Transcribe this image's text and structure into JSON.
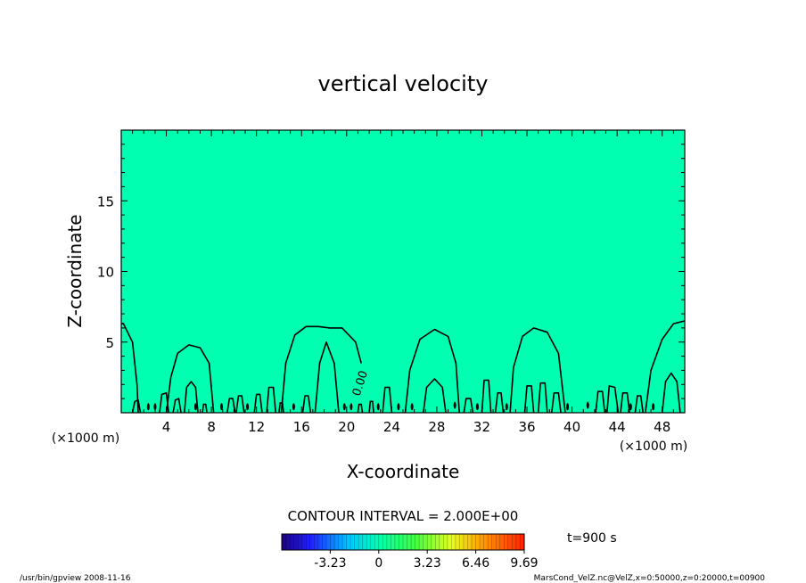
{
  "chart_data": {
    "type": "heatmap",
    "title": "vertical velocity",
    "xlabel": "X-coordinate",
    "ylabel": "Z-coordinate",
    "xunit_left": "(×1000 m)",
    "xunit_right": "(×1000 m)",
    "xlim": [
      0,
      50
    ],
    "ylim": [
      0,
      20
    ],
    "x_ticks": [
      4,
      8,
      12,
      16,
      20,
      24,
      28,
      32,
      36,
      40,
      44,
      48
    ],
    "y_ticks": [
      5,
      10,
      15
    ],
    "fill_color": "#00ffb0",
    "contour_interval_label": "CONTOUR INTERVAL = 2.000E+00",
    "contour_label": "0.00",
    "contour_label_x": 21.5,
    "contour_label_y": 2.0,
    "colorbar_ticks": [
      "-3.23",
      "0",
      "3.23",
      "6.46",
      "9.69"
    ],
    "colorbar_tick_values": [
      -3.23,
      0,
      3.23,
      6.46,
      9.69
    ],
    "colorbar_range": [
      -6.46,
      9.69
    ],
    "time_label": "t=900 s",
    "footer_left": "/usr/bin/gpview   2008-11-16",
    "footer_right": "MarsCond_VelZ.nc@VelZ,x=0:50000,z=0:20000,t=00900",
    "contours_outer": [
      {
        "x": [
          0.0,
          0.2,
          1.0,
          1.4,
          1.5
        ],
        "y": [
          6.3,
          6.3,
          5.0,
          2.0,
          0.0
        ]
      },
      {
        "x": [
          4.0,
          4.4,
          5.0,
          6.0,
          7.0,
          7.8,
          8.2
        ],
        "y": [
          0.0,
          2.5,
          4.2,
          4.8,
          4.6,
          3.5,
          0.0
        ]
      },
      {
        "x": [
          14.2,
          14.6,
          15.4,
          16.4,
          17.5,
          18.5,
          19.6,
          20.8,
          21.3
        ],
        "y": [
          0.0,
          3.5,
          5.5,
          6.1,
          6.1,
          6.0,
          6.0,
          5.0,
          3.5
        ]
      },
      {
        "x": [
          25.2,
          25.6,
          26.5,
          27.8,
          29.0,
          29.7,
          30.0
        ],
        "y": [
          0.0,
          3.0,
          5.2,
          5.9,
          5.4,
          3.5,
          0.0
        ]
      },
      {
        "x": [
          34.5,
          34.8,
          35.6,
          36.6,
          37.8,
          38.8,
          39.4
        ],
        "y": [
          0.0,
          3.2,
          5.4,
          6.0,
          5.7,
          4.2,
          0.0
        ]
      },
      {
        "x": [
          46.5,
          47.0,
          48.0,
          49.0,
          50.0
        ],
        "y": [
          0.0,
          3.0,
          5.2,
          6.3,
          6.5
        ]
      }
    ],
    "contours_inner": [
      {
        "x": [
          1.0,
          1.2,
          1.5,
          1.7
        ],
        "y": [
          0.0,
          0.8,
          0.9,
          0.0
        ]
      },
      {
        "x": [
          3.4,
          3.6,
          4.0,
          4.2
        ],
        "y": [
          0.0,
          1.3,
          1.4,
          0.0
        ]
      },
      {
        "x": [
          4.6,
          4.8,
          5.1,
          5.3
        ],
        "y": [
          0.0,
          0.9,
          1.0,
          0.0
        ]
      },
      {
        "x": [
          5.6,
          5.8,
          6.2,
          6.6,
          6.8
        ],
        "y": [
          0.0,
          1.8,
          2.2,
          1.8,
          0.0
        ]
      },
      {
        "x": [
          7.2,
          7.3,
          7.5,
          7.6
        ],
        "y": [
          0.0,
          0.6,
          0.6,
          0.0
        ]
      },
      {
        "x": [
          9.4,
          9.6,
          9.9,
          10.1
        ],
        "y": [
          0.0,
          1.0,
          1.0,
          0.0
        ]
      },
      {
        "x": [
          10.2,
          10.4,
          10.7,
          10.9
        ],
        "y": [
          0.0,
          1.2,
          1.2,
          0.0
        ]
      },
      {
        "x": [
          11.8,
          12.0,
          12.3,
          12.5
        ],
        "y": [
          0.0,
          1.3,
          1.3,
          0.0
        ]
      },
      {
        "x": [
          12.9,
          13.1,
          13.5,
          13.7
        ],
        "y": [
          0.0,
          1.8,
          1.8,
          0.0
        ]
      },
      {
        "x": [
          14.0,
          14.1,
          14.3,
          14.4
        ],
        "y": [
          0.0,
          0.7,
          0.7,
          0.0
        ]
      },
      {
        "x": [
          16.1,
          16.3,
          16.6,
          16.8
        ],
        "y": [
          0.0,
          1.2,
          1.2,
          0.0
        ]
      },
      {
        "x": [
          17.2,
          17.6,
          18.2,
          18.9,
          19.3
        ],
        "y": [
          0.0,
          3.5,
          5.0,
          3.5,
          0.0
        ]
      },
      {
        "x": [
          21.0,
          21.1,
          21.3,
          21.4
        ],
        "y": [
          0.0,
          0.6,
          0.6,
          0.0
        ]
      },
      {
        "x": [
          22.0,
          22.1,
          22.3,
          22.4
        ],
        "y": [
          0.0,
          0.8,
          0.8,
          0.0
        ]
      },
      {
        "x": [
          23.2,
          23.4,
          23.8,
          24.0
        ],
        "y": [
          0.0,
          1.8,
          1.8,
          0.0
        ]
      },
      {
        "x": [
          26.8,
          27.1,
          27.8,
          28.5,
          28.8
        ],
        "y": [
          0.0,
          1.8,
          2.4,
          1.8,
          0.0
        ]
      },
      {
        "x": [
          30.4,
          30.6,
          31.0,
          31.2
        ],
        "y": [
          0.0,
          1.0,
          1.0,
          0.0
        ]
      },
      {
        "x": [
          32.0,
          32.2,
          32.6,
          32.8
        ],
        "y": [
          0.0,
          2.3,
          2.3,
          0.0
        ]
      },
      {
        "x": [
          33.2,
          33.4,
          33.7,
          33.9
        ],
        "y": [
          0.0,
          1.4,
          1.4,
          0.0
        ]
      },
      {
        "x": [
          35.8,
          36.0,
          36.4,
          36.6
        ],
        "y": [
          0.0,
          1.9,
          1.9,
          0.0
        ]
      },
      {
        "x": [
          37.0,
          37.2,
          37.6,
          37.8
        ],
        "y": [
          0.0,
          2.1,
          2.1,
          0.0
        ]
      },
      {
        "x": [
          38.2,
          38.4,
          38.8,
          39.0
        ],
        "y": [
          0.0,
          1.4,
          1.4,
          0.0
        ]
      },
      {
        "x": [
          42.1,
          42.3,
          42.7,
          42.9
        ],
        "y": [
          0.0,
          1.5,
          1.5,
          0.0
        ]
      },
      {
        "x": [
          43.1,
          43.3,
          43.8,
          44.1
        ],
        "y": [
          0.0,
          1.9,
          1.8,
          0.0
        ]
      },
      {
        "x": [
          44.3,
          44.5,
          44.9,
          45.1
        ],
        "y": [
          0.0,
          1.4,
          1.4,
          0.0
        ]
      },
      {
        "x": [
          45.6,
          45.8,
          46.1,
          46.3
        ],
        "y": [
          0.0,
          1.2,
          1.2,
          0.0
        ]
      },
      {
        "x": [
          48.0,
          48.3,
          48.8,
          49.3,
          49.6
        ],
        "y": [
          0.0,
          2.2,
          2.8,
          2.2,
          0.0
        ]
      }
    ],
    "spots": [
      [
        2.4,
        0.3
      ],
      [
        3.0,
        0.3
      ],
      [
        6.6,
        0.3
      ],
      [
        8.9,
        0.3
      ],
      [
        11.2,
        0.3
      ],
      [
        15.3,
        0.3
      ],
      [
        19.8,
        0.3
      ],
      [
        20.4,
        0.3
      ],
      [
        22.8,
        0.3
      ],
      [
        24.6,
        0.3
      ],
      [
        25.8,
        0.3
      ],
      [
        29.6,
        0.4
      ],
      [
        31.6,
        0.3
      ],
      [
        34.2,
        0.3
      ],
      [
        39.6,
        0.3
      ],
      [
        41.4,
        0.4
      ],
      [
        45.2,
        0.3
      ],
      [
        47.2,
        0.3
      ]
    ]
  }
}
